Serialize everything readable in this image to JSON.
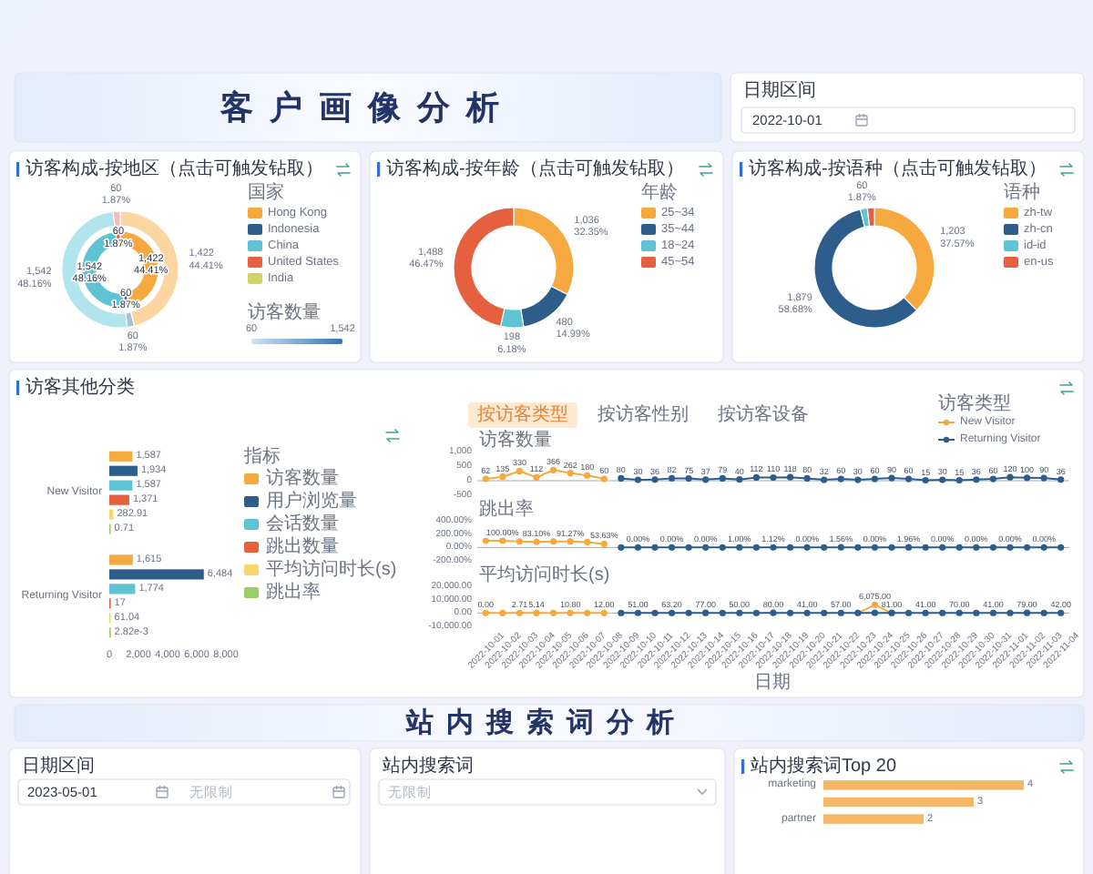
{
  "chart_data": [
    {
      "type": "other",
      "title": "客户画像分析",
      "annotations": [
        "日期区间",
        "2022-10-01"
      ]
    },
    {
      "type": "donut",
      "title": "访客构成-按地区（点击可触发钻取）",
      "categories": [
        "Hong Kong",
        "Indonesia",
        "China",
        "United States",
        "India"
      ],
      "series": [
        {
          "values": [
            1422,
            60,
            1542,
            60,
            null
          ],
          "colors": [
            "#fbd6a0",
            "#a9bfd3",
            "#b1e4ec",
            "#f6b9b4",
            null
          ],
          "value_labels": [
            "1,422\n44.41%",
            "60\n1.87%",
            "1,542\n48.16%",
            "60\n1.87%",
            null
          ]
        },
        {
          "values": [
            1422,
            60,
            1542,
            60,
            null
          ],
          "colors": [
            "#f5a93f",
            "#2d5d8b",
            "#5ec4d3",
            "#e4603e",
            "#cfd36a"
          ],
          "value_labels": [
            "1,422\n44.41%",
            "60\n1.87%",
            "1,542\n48.16%",
            "60\n1.87%",
            null
          ]
        }
      ],
      "legend": "right",
      "legend_title": "国家",
      "annotations": [
        "访客数量",
        "60",
        "1,542"
      ]
    },
    {
      "type": "donut",
      "title": "访客构成-按年龄（点击可触发钻取）",
      "categories": [
        "25~34",
        "35~44",
        "18~24",
        "45~54"
      ],
      "values": [
        1036,
        480,
        198,
        1488
      ],
      "colors": [
        "#f5a93f",
        "#2d5d8b",
        "#5ec4d3",
        "#e4603e"
      ],
      "value_labels": [
        "1,036\n32.35%",
        "480\n14.99%",
        "198\n6.18%",
        "1,488\n46.47%"
      ],
      "legend": "right",
      "legend_title": "年龄"
    },
    {
      "type": "donut",
      "title": "访客构成-按语种（点击可触发钻取）",
      "categories": [
        "zh-tw",
        "zh-cn",
        "id-id",
        "en-us"
      ],
      "values": [
        1203,
        1879,
        60,
        60
      ],
      "colors": [
        "#f5a93f",
        "#2d5d8b",
        "#5ec4d3",
        "#e4603e"
      ],
      "value_labels": [
        "1,203\n37.57%",
        "1,879\n58.68%",
        "60\n1.87%",
        null
      ],
      "legend": "right",
      "legend_title": "语种"
    },
    {
      "type": "bar",
      "orientation": "horizontal",
      "title": "访客其他分类",
      "categories": [
        "New Visitor",
        "Returning Visitor"
      ],
      "series": [
        {
          "name": "访客数量",
          "color": "#f5a93f",
          "values": [
            1587,
            1615
          ],
          "value_labels": [
            "1,587",
            "1,615"
          ]
        },
        {
          "name": "用户浏览量",
          "color": "#2d5d8b",
          "values": [
            1934,
            6484
          ],
          "value_labels": [
            "1,934",
            "6,484"
          ]
        },
        {
          "name": "会话数量",
          "color": "#5ec4d3",
          "values": [
            1587,
            1774
          ],
          "value_labels": [
            "1,587",
            "1,774"
          ]
        },
        {
          "name": "跳出数量",
          "color": "#e4603e",
          "values": [
            1371,
            17
          ],
          "value_labels": [
            "1,371",
            "17"
          ]
        },
        {
          "name": "平均访问时长(s)",
          "color": "#f6d66e",
          "values": [
            282.91,
            61.04
          ],
          "value_labels": [
            "282.91",
            "61.04"
          ]
        },
        {
          "name": "跳出率",
          "color": "#9ccc65",
          "values": [
            0.71,
            0.00282
          ],
          "value_labels": [
            "0.71",
            "2.82e-3"
          ]
        }
      ],
      "xlim": [
        0,
        8000
      ],
      "xticks": [
        0,
        {
          "value": 2000,
          "label": "2,000"
        },
        {
          "value": 4000,
          "label": "4,000"
        },
        {
          "value": 6000,
          "label": "6,000"
        },
        {
          "value": 8000,
          "label": "8,000"
        }
      ],
      "legend": "right",
      "legend_title": "指标"
    },
    {
      "type": "line",
      "ylabel": "访客数量",
      "categories": [
        "2022-10-01",
        "2022-10-02",
        "2022-10-03",
        "2022-10-04",
        "2022-10-05",
        "2022-10-06",
        "2022-10-07",
        "2022-10-08",
        "2022-10-09",
        "2022-10-10",
        "2022-10-11",
        "2022-10-12",
        "2022-10-13",
        "2022-10-14",
        "2022-10-15",
        "2022-10-16",
        "2022-10-17",
        "2022-10-18",
        "2022-10-19",
        "2022-10-20",
        "2022-10-21",
        "2022-10-22",
        "2022-10-23",
        "2022-10-24",
        "2022-10-25",
        "2022-10-26",
        "2022-10-27",
        "2022-10-28",
        "2022-10-29",
        "2022-10-30",
        "2022-10-31",
        "2022-11-01",
        "2022-11-02",
        "2022-11-03",
        "2022-11-04"
      ],
      "series": [
        {
          "name": "New Visitor",
          "color": "#f5a93f",
          "values": [
            62,
            135,
            330,
            112,
            366,
            262,
            180,
            60,
            null,
            null,
            null,
            null,
            null,
            null,
            null,
            null,
            null,
            null,
            null,
            null,
            null,
            null,
            null,
            null,
            null,
            null,
            null,
            null,
            null,
            null,
            null,
            null,
            null,
            null,
            null
          ]
        },
        {
          "name": "Returning Visitor",
          "color": "#2d5d8b",
          "values": [
            null,
            null,
            null,
            null,
            null,
            null,
            null,
            null,
            80,
            30,
            36,
            82,
            75,
            37,
            79,
            40,
            112,
            110,
            118,
            80,
            32,
            60,
            30,
            60,
            90,
            60,
            15,
            30,
            15,
            36,
            60,
            120,
            100,
            90,
            36
          ]
        }
      ],
      "ylim": [
        -500,
        1000
      ],
      "yticks": [
        -500,
        0,
        500,
        {
          "value": 1000,
          "label": "1,000"
        }
      ],
      "data_labels": true,
      "marker": "circle",
      "legend": "top right",
      "legend_title": "访客类型",
      "tick_labels": "y",
      "annotations": [
        "按访客类型",
        "按访客性别",
        "按访客设备"
      ]
    },
    {
      "type": "line",
      "ylabel": "跳出率",
      "categories": [
        "2022-10-01",
        "2022-10-02",
        "2022-10-03",
        "2022-10-04",
        "2022-10-05",
        "2022-10-06",
        "2022-10-07",
        "2022-10-08",
        "2022-10-09",
        "2022-10-10",
        "2022-10-11",
        "2022-10-12",
        "2022-10-13",
        "2022-10-14",
        "2022-10-15",
        "2022-10-16",
        "2022-10-17",
        "2022-10-18",
        "2022-10-19",
        "2022-10-20",
        "2022-10-21",
        "2022-10-22",
        "2022-10-23",
        "2022-10-24",
        "2022-10-25",
        "2022-10-26",
        "2022-10-27",
        "2022-10-28",
        "2022-10-29",
        "2022-10-30",
        "2022-10-31",
        "2022-11-01",
        "2022-11-02",
        "2022-11-03",
        "2022-11-04"
      ],
      "series": [
        {
          "color": "#f5a93f",
          "values": [
            100,
            100,
            90,
            83.1,
            90,
            91.27,
            80,
            53.63,
            null,
            null,
            null,
            null,
            null,
            null,
            null,
            null,
            null,
            null,
            null,
            null,
            null,
            null,
            null,
            null,
            null,
            null,
            null,
            null,
            null,
            null,
            null,
            null,
            null,
            null,
            null
          ],
          "value_labels": [
            null,
            "100.00%",
            null,
            "83.10%",
            null,
            "91.27%",
            null,
            "53.63%",
            null,
            null,
            null,
            null,
            null,
            null,
            null,
            null,
            null,
            null,
            null,
            null,
            null,
            null,
            null,
            null,
            null,
            null,
            null,
            null,
            null,
            null,
            null,
            null,
            null,
            null,
            null
          ]
        },
        {
          "color": "#2d5d8b",
          "values": [
            null,
            null,
            null,
            null,
            null,
            null,
            null,
            null,
            0,
            0,
            0,
            0,
            0,
            0,
            0,
            1,
            0,
            1.12,
            0,
            0,
            0,
            1.56,
            0,
            0,
            0,
            1.96,
            0,
            0,
            0,
            0,
            0,
            0,
            0,
            0,
            0
          ],
          "value_labels": [
            null,
            null,
            null,
            null,
            null,
            null,
            null,
            null,
            null,
            "0.00%",
            null,
            "0.00%",
            null,
            "0.00%",
            null,
            "1.00%",
            null,
            "1.12%",
            null,
            "0.00%",
            null,
            "1.56%",
            null,
            "0.00%",
            null,
            "1.96%",
            null,
            "0.00%",
            null,
            "0.00%",
            null,
            "0.00%",
            null,
            "0.00%",
            null
          ]
        }
      ],
      "ylim": [
        -200,
        400
      ],
      "yticks": [
        {
          "value": -200,
          "label": "-200.00%"
        },
        {
          "value": 0,
          "label": "0.00%"
        },
        {
          "value": 200,
          "label": "200.00%"
        },
        {
          "value": 400,
          "label": "400.00%"
        }
      ],
      "marker": "circle",
      "tick_labels": "y"
    },
    {
      "type": "line",
      "ylabel": "平均访问时长(s)",
      "xlabel": "日期",
      "categories": [
        "2022-10-01",
        "2022-10-02",
        "2022-10-03",
        "2022-10-04",
        "2022-10-05",
        "2022-10-06",
        "2022-10-07",
        "2022-10-08",
        "2022-10-09",
        "2022-10-10",
        "2022-10-11",
        "2022-10-12",
        "2022-10-13",
        "2022-10-14",
        "2022-10-15",
        "2022-10-16",
        "2022-10-17",
        "2022-10-18",
        "2022-10-19",
        "2022-10-20",
        "2022-10-21",
        "2022-10-22",
        "2022-10-23",
        "2022-10-24",
        "2022-10-25",
        "2022-10-26",
        "2022-10-27",
        "2022-10-28",
        "2022-10-29",
        "2022-10-30",
        "2022-10-31",
        "2022-11-01",
        "2022-11-02",
        "2022-11-03",
        "2022-11-04"
      ],
      "series": [
        {
          "color": "#f5a93f",
          "values": [
            0,
            1.5,
            2.71,
            5.14,
            8,
            10.8,
            11,
            12,
            null,
            null,
            null,
            null,
            null,
            null,
            null,
            null,
            null,
            null,
            null,
            null,
            null,
            null,
            0,
            6075,
            0,
            null,
            null,
            null,
            null,
            null,
            null,
            null,
            null,
            null,
            null
          ],
          "value_labels": [
            "0.00",
            null,
            "2.71",
            "5.14",
            null,
            "10.80",
            null,
            "12.00",
            null,
            null,
            null,
            null,
            null,
            null,
            null,
            null,
            null,
            null,
            null,
            null,
            null,
            null,
            null,
            "6,075.00",
            null,
            null,
            null,
            null,
            null,
            null,
            null,
            null,
            null,
            null,
            null
          ]
        },
        {
          "color": "#2d5d8b",
          "values": [
            null,
            null,
            null,
            null,
            null,
            null,
            null,
            null,
            50,
            51,
            55,
            63.2,
            70,
            77,
            60,
            50,
            65,
            80,
            60,
            41,
            50,
            57,
            70,
            80,
            81,
            60,
            41,
            55,
            70,
            55,
            41,
            60,
            79,
            60,
            42
          ],
          "value_labels": [
            null,
            null,
            null,
            null,
            null,
            null,
            null,
            null,
            null,
            "51.00",
            null,
            "63.20",
            null,
            "77.00",
            null,
            "50.00",
            null,
            "80.00",
            null,
            "41.00",
            null,
            "57.00",
            null,
            null,
            "81.00",
            null,
            "41.00",
            null,
            "70.00",
            null,
            "41.00",
            null,
            "79.00",
            null,
            "42.00"
          ]
        }
      ],
      "ylim": [
        -10000,
        20000
      ],
      "yticks": [
        {
          "value": -10000,
          "label": "-10,000.00"
        },
        {
          "value": 0,
          "label": "0.00"
        },
        {
          "value": 10000,
          "label": "10,000.00"
        },
        {
          "value": 20000,
          "label": "20,000.00"
        }
      ],
      "marker": "circle"
    },
    {
      "type": "other",
      "title": "站内搜索词分析",
      "annotations": [
        "日期区间",
        "2023-05-01",
        "无限制",
        "站内搜索词",
        "无限制"
      ]
    },
    {
      "type": "bar",
      "orientation": "horizontal",
      "title": "站内搜索词Top 20",
      "categories": [
        "marketing",
        null,
        "partner"
      ],
      "values": [
        4,
        3,
        2
      ],
      "color": "#f3b765",
      "data_labels": true
    }
  ]
}
